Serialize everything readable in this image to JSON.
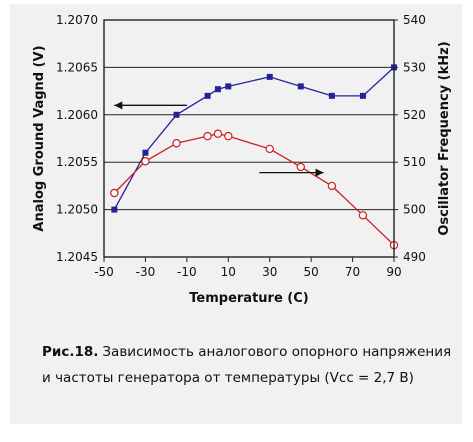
{
  "chart_data": {
    "type": "line",
    "xlabel": "Temperature (C)",
    "ylabel_left": "Analog Ground Vagnd (V)",
    "ylabel_right": "Oscillator Frequency (kHz)",
    "xlim": [
      -50,
      90
    ],
    "ylim_left": [
      1.2045,
      1.207
    ],
    "ylim_right": [
      490,
      540
    ],
    "x_ticks": [
      "-50",
      "-30",
      "-10",
      "10",
      "30",
      "50",
      "70",
      "90"
    ],
    "y_left_ticks": [
      "1.2045",
      "1.2050",
      "1.2055",
      "1.2060",
      "1.2065",
      "1.2070"
    ],
    "y_right_ticks": [
      "490",
      "500",
      "510",
      "520",
      "530",
      "540"
    ],
    "grid": "horizontal",
    "series": [
      {
        "axis": "left",
        "marker": "filled-square",
        "color": "#22229a",
        "x": [
          -45,
          -30,
          -15,
          0,
          5,
          10,
          30,
          45,
          60,
          75,
          90
        ],
        "y": [
          1.205,
          1.2056,
          1.206,
          1.2062,
          1.20627,
          1.2063,
          1.2064,
          1.2063,
          1.2062,
          1.2062,
          1.2065
        ]
      },
      {
        "axis": "right",
        "marker": "open-circle",
        "color": "#cc1f1f",
        "x": [
          -45,
          -30,
          -15,
          0,
          5,
          10,
          30,
          45,
          60,
          75,
          90
        ],
        "y": [
          503.5,
          510.2,
          514.0,
          515.5,
          516.0,
          515.5,
          512.8,
          509.0,
          505.0,
          498.8,
          492.5
        ]
      }
    ],
    "annotations": [
      {
        "type": "arrow",
        "direction": "left",
        "x_from": -10,
        "x_to": -45,
        "y_axis": "left",
        "y": 1.2061
      },
      {
        "type": "arrow",
        "direction": "right",
        "x_from": 25,
        "x_to": 56,
        "y_axis": "left",
        "y": 1.20539
      }
    ]
  },
  "caption": {
    "label": "Рис.18.",
    "text": "Зависимость аналогового опорного напряжения и частоты генератора от температуры (Vcc = 2,7 В)"
  },
  "colors": {
    "background": "#f1f1f1",
    "grid": "#222222",
    "blue_series": "#22229a",
    "red_series": "#cc1f1f"
  }
}
